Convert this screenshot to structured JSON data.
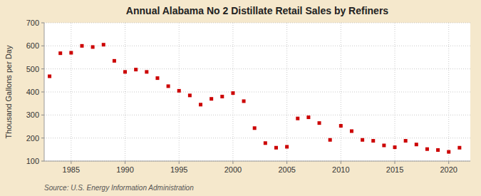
{
  "chart_data": {
    "type": "scatter",
    "title": "Annual Alabama No 2 Distillate Retail Sales by Refiners",
    "ylabel": "Thousand Gallons per Day",
    "source": "Source: U.S. Energy Information Administration",
    "x": [
      1983,
      1984,
      1985,
      1986,
      1987,
      1988,
      1989,
      1990,
      1991,
      1992,
      1993,
      1994,
      1995,
      1996,
      1997,
      1998,
      1999,
      2000,
      2001,
      2002,
      2003,
      2004,
      2005,
      2006,
      2007,
      2008,
      2009,
      2010,
      2011,
      2012,
      2013,
      2014,
      2015,
      2016,
      2017,
      2018,
      2019,
      2020,
      2021
    ],
    "values": [
      468,
      568,
      570,
      600,
      595,
      605,
      535,
      487,
      497,
      487,
      460,
      425,
      405,
      385,
      345,
      370,
      380,
      395,
      360,
      243,
      178,
      158,
      162,
      285,
      290,
      265,
      192,
      253,
      230,
      192,
      188,
      168,
      160,
      188,
      172,
      152,
      148,
      140,
      158
    ],
    "color": "#cc0000",
    "marker": "square",
    "xlim": [
      1982.5,
      2022
    ],
    "xticks": [
      1985,
      1990,
      1995,
      2000,
      2005,
      2010,
      2015,
      2020
    ],
    "ylim": [
      100,
      700
    ],
    "yticks": [
      100,
      200,
      300,
      400,
      500,
      600,
      700
    ],
    "grid": true
  }
}
